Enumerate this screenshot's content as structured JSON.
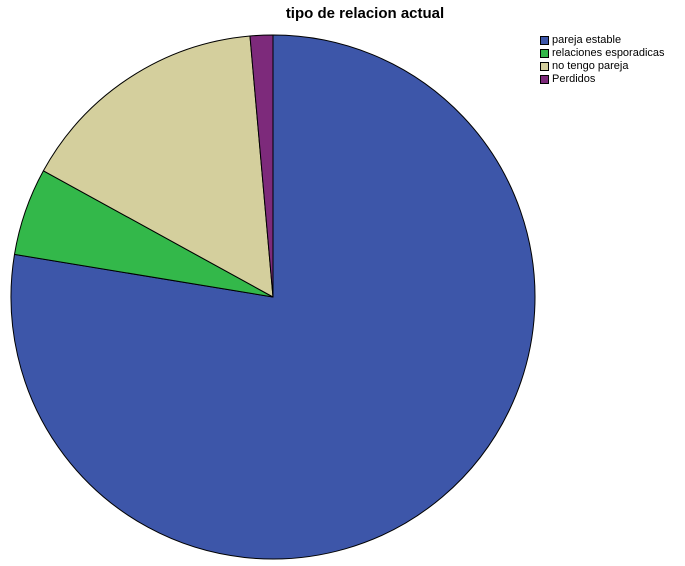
{
  "chart_data": {
    "type": "pie",
    "title": "tipo de relacion actual",
    "slices": [
      {
        "label": "pareja estable",
        "value": 77.6,
        "color": "#3D56A9"
      },
      {
        "label": "relaciones esporadicas",
        "value": 5.4,
        "color": "#33B84A"
      },
      {
        "label": "no tengo pareja",
        "value": 15.6,
        "color": "#D4CF9D"
      },
      {
        "label": "Perdidos",
        "value": 1.4,
        "color": "#7D2A7B"
      }
    ],
    "legend_position": "top-right",
    "start_angle": "12 o'clock",
    "direction": "clockwise"
  }
}
